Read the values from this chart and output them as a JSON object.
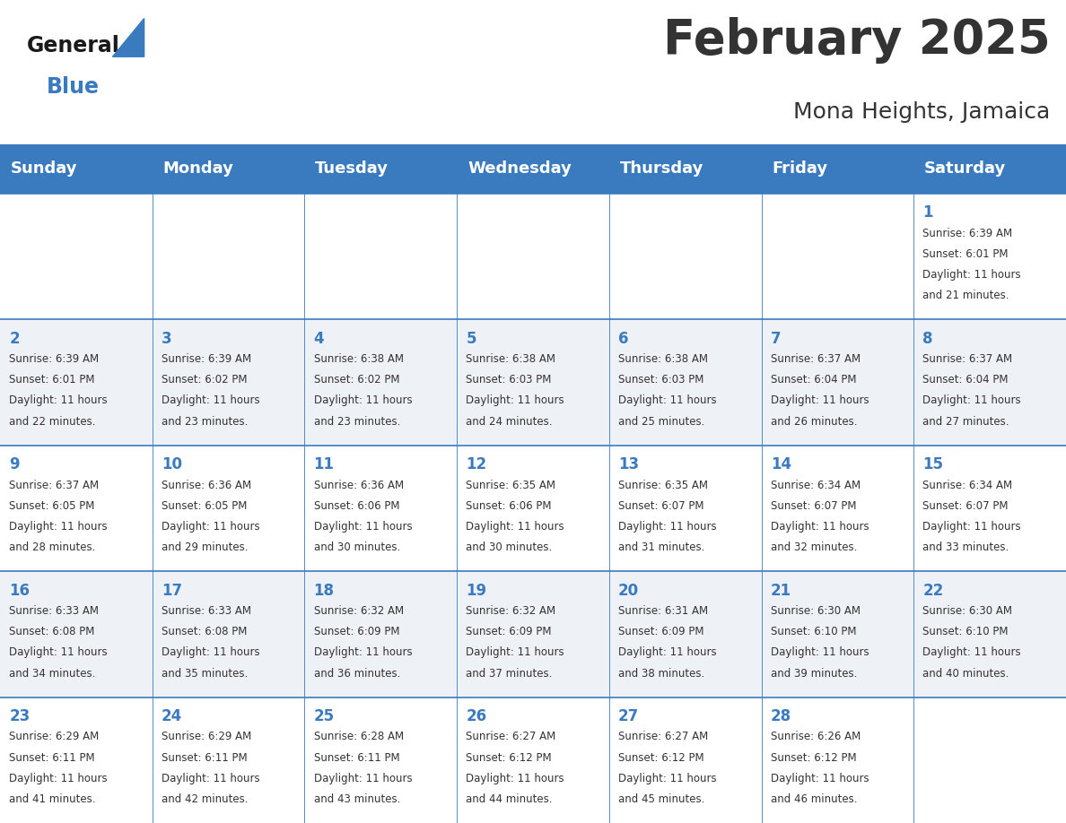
{
  "title": "February 2025",
  "subtitle": "Mona Heights, Jamaica",
  "header_color": "#3a7abf",
  "header_text_color": "#ffffff",
  "background_color": "#ffffff",
  "alt_row_color": "#eef2f7",
  "days_of_week": [
    "Sunday",
    "Monday",
    "Tuesday",
    "Wednesday",
    "Thursday",
    "Friday",
    "Saturday"
  ],
  "cell_text_color": "#333333",
  "day_num_color": "#3a7abf",
  "grid_color": "#3a7abf",
  "weeks": [
    [
      null,
      null,
      null,
      null,
      null,
      null,
      1
    ],
    [
      2,
      3,
      4,
      5,
      6,
      7,
      8
    ],
    [
      9,
      10,
      11,
      12,
      13,
      14,
      15
    ],
    [
      16,
      17,
      18,
      19,
      20,
      21,
      22
    ],
    [
      23,
      24,
      25,
      26,
      27,
      28,
      null
    ]
  ],
  "cell_data": {
    "1": {
      "sunrise": "6:39 AM",
      "sunset": "6:01 PM",
      "daylight": "11 hours and 21 minutes"
    },
    "2": {
      "sunrise": "6:39 AM",
      "sunset": "6:01 PM",
      "daylight": "11 hours and 22 minutes"
    },
    "3": {
      "sunrise": "6:39 AM",
      "sunset": "6:02 PM",
      "daylight": "11 hours and 23 minutes"
    },
    "4": {
      "sunrise": "6:38 AM",
      "sunset": "6:02 PM",
      "daylight": "11 hours and 23 minutes"
    },
    "5": {
      "sunrise": "6:38 AM",
      "sunset": "6:03 PM",
      "daylight": "11 hours and 24 minutes"
    },
    "6": {
      "sunrise": "6:38 AM",
      "sunset": "6:03 PM",
      "daylight": "11 hours and 25 minutes"
    },
    "7": {
      "sunrise": "6:37 AM",
      "sunset": "6:04 PM",
      "daylight": "11 hours and 26 minutes"
    },
    "8": {
      "sunrise": "6:37 AM",
      "sunset": "6:04 PM",
      "daylight": "11 hours and 27 minutes"
    },
    "9": {
      "sunrise": "6:37 AM",
      "sunset": "6:05 PM",
      "daylight": "11 hours and 28 minutes"
    },
    "10": {
      "sunrise": "6:36 AM",
      "sunset": "6:05 PM",
      "daylight": "11 hours and 29 minutes"
    },
    "11": {
      "sunrise": "6:36 AM",
      "sunset": "6:06 PM",
      "daylight": "11 hours and 30 minutes"
    },
    "12": {
      "sunrise": "6:35 AM",
      "sunset": "6:06 PM",
      "daylight": "11 hours and 30 minutes"
    },
    "13": {
      "sunrise": "6:35 AM",
      "sunset": "6:07 PM",
      "daylight": "11 hours and 31 minutes"
    },
    "14": {
      "sunrise": "6:34 AM",
      "sunset": "6:07 PM",
      "daylight": "11 hours and 32 minutes"
    },
    "15": {
      "sunrise": "6:34 AM",
      "sunset": "6:07 PM",
      "daylight": "11 hours and 33 minutes"
    },
    "16": {
      "sunrise": "6:33 AM",
      "sunset": "6:08 PM",
      "daylight": "11 hours and 34 minutes"
    },
    "17": {
      "sunrise": "6:33 AM",
      "sunset": "6:08 PM",
      "daylight": "11 hours and 35 minutes"
    },
    "18": {
      "sunrise": "6:32 AM",
      "sunset": "6:09 PM",
      "daylight": "11 hours and 36 minutes"
    },
    "19": {
      "sunrise": "6:32 AM",
      "sunset": "6:09 PM",
      "daylight": "11 hours and 37 minutes"
    },
    "20": {
      "sunrise": "6:31 AM",
      "sunset": "6:09 PM",
      "daylight": "11 hours and 38 minutes"
    },
    "21": {
      "sunrise": "6:30 AM",
      "sunset": "6:10 PM",
      "daylight": "11 hours and 39 minutes"
    },
    "22": {
      "sunrise": "6:30 AM",
      "sunset": "6:10 PM",
      "daylight": "11 hours and 40 minutes"
    },
    "23": {
      "sunrise": "6:29 AM",
      "sunset": "6:11 PM",
      "daylight": "11 hours and 41 minutes"
    },
    "24": {
      "sunrise": "6:29 AM",
      "sunset": "6:11 PM",
      "daylight": "11 hours and 42 minutes"
    },
    "25": {
      "sunrise": "6:28 AM",
      "sunset": "6:11 PM",
      "daylight": "11 hours and 43 minutes"
    },
    "26": {
      "sunrise": "6:27 AM",
      "sunset": "6:12 PM",
      "daylight": "11 hours and 44 minutes"
    },
    "27": {
      "sunrise": "6:27 AM",
      "sunset": "6:12 PM",
      "daylight": "11 hours and 45 minutes"
    },
    "28": {
      "sunrise": "6:26 AM",
      "sunset": "6:12 PM",
      "daylight": "11 hours and 46 minutes"
    }
  },
  "logo_general_color": "#1a1a1a",
  "logo_blue_color": "#3a7abf",
  "figsize": [
    11.88,
    9.18
  ],
  "dpi": 100,
  "title_fontsize": 38,
  "subtitle_fontsize": 18,
  "header_fontsize": 13,
  "day_num_fontsize": 12,
  "cell_fontsize": 8.5
}
